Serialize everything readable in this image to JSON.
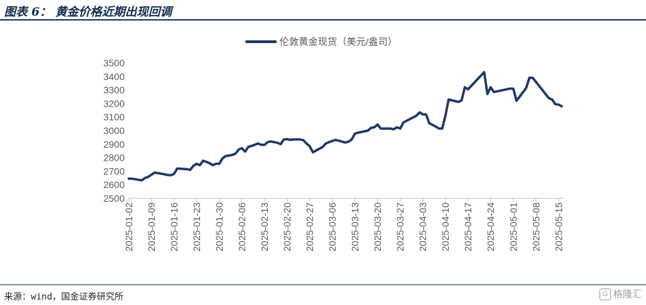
{
  "header": {
    "title": "图表 6： 黄金价格近期出现回调"
  },
  "footer": {
    "source": "来源：wind，国金证券研究所",
    "watermark_text": "格隆汇",
    "watermark_icon": "glh-logo-icon"
  },
  "chart_data": {
    "type": "line",
    "title": "",
    "xlabel": "",
    "ylabel": "",
    "ylim": [
      2500,
      3500
    ],
    "yticks": [
      2500,
      2600,
      2700,
      2800,
      2900,
      3000,
      3100,
      3200,
      3300,
      3400,
      3500
    ],
    "xticks": [
      "2025-01-02",
      "2025-01-09",
      "2025-01-16",
      "2025-01-23",
      "2025-01-30",
      "2025-02-06",
      "2025-02-13",
      "2025-02-20",
      "2025-02-27",
      "2025-03-06",
      "2025-03-13",
      "2025-03-20",
      "2025-03-27",
      "2025-04-03",
      "2025-04-10",
      "2025-04-17",
      "2025-04-24",
      "2025-05-01",
      "2025-05-08",
      "2025-05-15"
    ],
    "xrange": [
      "2025-01-02",
      "2025-05-16"
    ],
    "grid": false,
    "legend_position": "top-center",
    "color": "#1f3864",
    "series": [
      {
        "name": "伦敦黄金现货（美元/盎司）",
        "points": [
          [
            "2025-01-02",
            2645
          ],
          [
            "2025-01-03",
            2645
          ],
          [
            "2025-01-06",
            2633
          ],
          [
            "2025-01-07",
            2650
          ],
          [
            "2025-01-08",
            2658
          ],
          [
            "2025-01-10",
            2690
          ],
          [
            "2025-01-13",
            2678
          ],
          [
            "2025-01-14",
            2672
          ],
          [
            "2025-01-15",
            2670
          ],
          [
            "2025-01-16",
            2680
          ],
          [
            "2025-01-17",
            2720
          ],
          [
            "2025-01-20",
            2715
          ],
          [
            "2025-01-21",
            2710
          ],
          [
            "2025-01-22",
            2740
          ],
          [
            "2025-01-23",
            2755
          ],
          [
            "2025-01-24",
            2745
          ],
          [
            "2025-01-25",
            2778
          ],
          [
            "2025-01-27",
            2760
          ],
          [
            "2025-01-28",
            2745
          ],
          [
            "2025-01-29",
            2755
          ],
          [
            "2025-01-30",
            2755
          ],
          [
            "2025-01-31",
            2795
          ],
          [
            "2025-02-01",
            2812
          ],
          [
            "2025-02-03",
            2820
          ],
          [
            "2025-02-04",
            2830
          ],
          [
            "2025-02-05",
            2860
          ],
          [
            "2025-02-06",
            2870
          ],
          [
            "2025-02-07",
            2845
          ],
          [
            "2025-02-08",
            2880
          ],
          [
            "2025-02-10",
            2895
          ],
          [
            "2025-02-11",
            2905
          ],
          [
            "2025-02-12",
            2895
          ],
          [
            "2025-02-13",
            2895
          ],
          [
            "2025-02-14",
            2915
          ],
          [
            "2025-02-15",
            2920
          ],
          [
            "2025-02-17",
            2910
          ],
          [
            "2025-02-18",
            2900
          ],
          [
            "2025-02-19",
            2935
          ],
          [
            "2025-02-20",
            2937
          ],
          [
            "2025-02-21",
            2932
          ],
          [
            "2025-02-22",
            2935
          ],
          [
            "2025-02-24",
            2935
          ],
          [
            "2025-02-25",
            2930
          ],
          [
            "2025-02-26",
            2905
          ],
          [
            "2025-02-27",
            2885
          ],
          [
            "2025-02-28",
            2840
          ],
          [
            "2025-03-03",
            2880
          ],
          [
            "2025-03-04",
            2905
          ],
          [
            "2025-03-05",
            2915
          ],
          [
            "2025-03-07",
            2932
          ],
          [
            "2025-03-10",
            2912
          ],
          [
            "2025-03-11",
            2918
          ],
          [
            "2025-03-12",
            2935
          ],
          [
            "2025-03-13",
            2978
          ],
          [
            "2025-03-14",
            2985
          ],
          [
            "2025-03-17",
            3000
          ],
          [
            "2025-03-18",
            3020
          ],
          [
            "2025-03-19",
            3025
          ],
          [
            "2025-03-20",
            3045
          ],
          [
            "2025-03-21",
            3015
          ],
          [
            "2025-03-24",
            3015
          ],
          [
            "2025-03-25",
            3010
          ],
          [
            "2025-03-26",
            3025
          ],
          [
            "2025-03-27",
            3015
          ],
          [
            "2025-03-28",
            3060
          ],
          [
            "2025-04-01",
            3110
          ],
          [
            "2025-04-02",
            3135
          ],
          [
            "2025-04-03",
            3120
          ],
          [
            "2025-04-04",
            3120
          ],
          [
            "2025-04-05",
            3055
          ],
          [
            "2025-04-07",
            3030
          ],
          [
            "2025-04-08",
            3015
          ],
          [
            "2025-04-09",
            3015
          ],
          [
            "2025-04-10",
            3110
          ],
          [
            "2025-04-11",
            3230
          ],
          [
            "2025-04-14",
            3212
          ],
          [
            "2025-04-15",
            3222
          ],
          [
            "2025-04-16",
            3320
          ],
          [
            "2025-04-17",
            3305
          ],
          [
            "2025-04-22",
            3432
          ],
          [
            "2025-04-23",
            3270
          ],
          [
            "2025-04-24",
            3320
          ],
          [
            "2025-04-25",
            3285
          ],
          [
            "2025-04-28",
            3300
          ],
          [
            "2025-04-30",
            3310
          ],
          [
            "2025-05-01",
            3310
          ],
          [
            "2025-05-02",
            3220
          ],
          [
            "2025-05-05",
            3315
          ],
          [
            "2025-05-06",
            3390
          ],
          [
            "2025-05-07",
            3390
          ],
          [
            "2025-05-08",
            3360
          ],
          [
            "2025-05-12",
            3240
          ],
          [
            "2025-05-13",
            3230
          ],
          [
            "2025-05-14",
            3195
          ],
          [
            "2025-05-15",
            3192
          ],
          [
            "2025-05-16",
            3180
          ]
        ]
      }
    ]
  }
}
